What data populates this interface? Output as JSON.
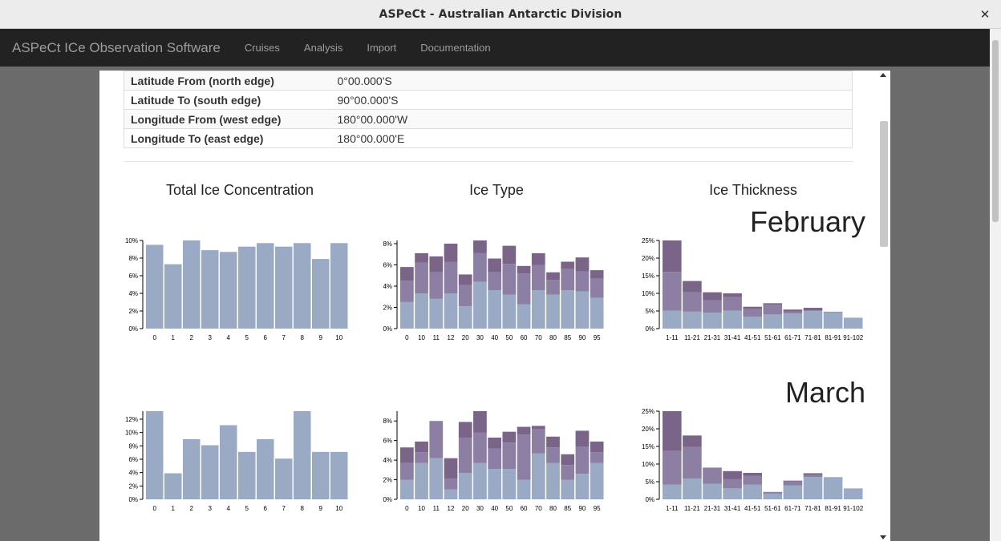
{
  "window": {
    "title": "ASPeCt - Australian Antarctic Division"
  },
  "navbar": {
    "brand": "ASPeCt ICe Observation Software",
    "items": [
      "Cruises",
      "Analysis",
      "Import",
      "Documentation"
    ]
  },
  "info_table": [
    {
      "key": "Latitude From (north edge)",
      "value": "0°00.000'S"
    },
    {
      "key": "Latitude To (south edge)",
      "value": "90°00.000'S"
    },
    {
      "key": "Longitude From (west edge)",
      "value": "180°00.000'W"
    },
    {
      "key": "Longitude To (east edge)",
      "value": "180°00.000'E"
    }
  ],
  "columns": {
    "concentration": "Total Ice Concentration",
    "type": "Ice Type",
    "thickness": "Ice Thickness"
  },
  "months": [
    "February",
    "March"
  ],
  "colors": {
    "light": "#9aaac4",
    "mid": "#8c7fa3",
    "dark": "#7a6488"
  },
  "chart_data": [
    {
      "type": "bar",
      "month": "February",
      "title": "Total Ice Concentration",
      "categories": [
        "0",
        "1",
        "2",
        "3",
        "4",
        "5",
        "6",
        "7",
        "8",
        "9",
        "10"
      ],
      "values": [
        9.5,
        7.3,
        10.1,
        8.9,
        8.7,
        9.3,
        9.7,
        9.3,
        9.7,
        7.9,
        9.7
      ],
      "ylim": [
        0,
        10
      ],
      "yticks": [
        "0%",
        "2%",
        "4%",
        "6%",
        "8%",
        "10%"
      ]
    },
    {
      "type": "bar",
      "month": "February",
      "title": "Ice Type",
      "stacked": true,
      "categories": [
        "0",
        "10",
        "11",
        "12",
        "20",
        "30",
        "40",
        "50",
        "60",
        "70",
        "80",
        "85",
        "90",
        "95"
      ],
      "series": [
        {
          "values": [
            2.5,
            3.3,
            2.8,
            3.3,
            2.1,
            4.4,
            3.6,
            3.2,
            2.3,
            3.6,
            3.2,
            3.6,
            3.5,
            2.9
          ]
        },
        {
          "values": [
            2.0,
            2.9,
            2.5,
            3.0,
            2.0,
            2.7,
            1.7,
            2.9,
            2.9,
            2.4,
            1.4,
            2.0,
            1.9,
            1.8
          ]
        },
        {
          "values": [
            1.3,
            0.9,
            1.5,
            1.7,
            1.0,
            1.4,
            1.3,
            1.7,
            0.7,
            1.1,
            0.7,
            0.7,
            1.3,
            0.8
          ]
        }
      ],
      "ylim": [
        0,
        8.3
      ],
      "yticks": [
        "0%",
        "2%",
        "4%",
        "6%",
        "8%"
      ]
    },
    {
      "type": "bar",
      "month": "February",
      "title": "Ice Thickness",
      "stacked": true,
      "categories": [
        "1-11",
        "11-21",
        "21-31",
        "31-41",
        "41-51",
        "51-61",
        "61-71",
        "71-81",
        "81-91",
        "91-102"
      ],
      "series": [
        {
          "values": [
            5.1,
            4.8,
            4.5,
            5.1,
            3.4,
            4.0,
            4.3,
            5.0,
            4.6,
            3.1
          ]
        },
        {
          "values": [
            11.0,
            5.5,
            3.5,
            3.8,
            2.2,
            2.8,
            0.5,
            0.2,
            0.2,
            0.0
          ]
        },
        {
          "values": [
            9.2,
            3.2,
            2.3,
            1.1,
            0.6,
            0.4,
            0.6,
            0.7,
            0.0,
            0.0
          ]
        }
      ],
      "ylim": [
        0,
        25
      ],
      "yticks": [
        "0%",
        "5%",
        "10%",
        "15%",
        "20%",
        "25%"
      ]
    },
    {
      "type": "bar",
      "month": "March",
      "title": "Total Ice Concentration",
      "categories": [
        "0",
        "1",
        "2",
        "3",
        "4",
        "5",
        "6",
        "7",
        "8",
        "9",
        "10"
      ],
      "values": [
        13.2,
        3.9,
        9.0,
        8.1,
        11.1,
        7.1,
        9.0,
        6.1,
        13.2,
        7.1,
        7.1
      ],
      "ylim": [
        0,
        13.2
      ],
      "yticks": [
        "0%",
        "2%",
        "4%",
        "6%",
        "8%",
        "10%",
        "12%"
      ]
    },
    {
      "type": "bar",
      "month": "March",
      "title": "Ice Type",
      "stacked": true,
      "categories": [
        "0",
        "10",
        "11",
        "12",
        "20",
        "30",
        "40",
        "50",
        "60",
        "70",
        "80",
        "85",
        "90",
        "95"
      ],
      "series": [
        {
          "values": [
            2.0,
            3.7,
            4.2,
            1.0,
            2.7,
            3.7,
            3.1,
            3.1,
            2.0,
            4.7,
            3.7,
            2.0,
            2.6,
            3.7
          ]
        },
        {
          "values": [
            1.7,
            1.1,
            3.8,
            1.1,
            3.6,
            3.1,
            2.1,
            2.7,
            4.6,
            2.5,
            1.6,
            1.5,
            2.8,
            1.1
          ]
        },
        {
          "values": [
            1.6,
            1.1,
            0.0,
            2.1,
            1.6,
            2.2,
            1.1,
            1.1,
            0.8,
            0.3,
            1.1,
            1.1,
            1.6,
            1.1
          ]
        }
      ],
      "ylim": [
        0,
        9.0
      ],
      "yticks": [
        "0%",
        "2%",
        "4%",
        "6%",
        "8%"
      ]
    },
    {
      "type": "bar",
      "month": "March",
      "title": "Ice Thickness",
      "stacked": true,
      "categories": [
        "1-11",
        "11-21",
        "21-31",
        "31-41",
        "41-51",
        "51-61",
        "61-71",
        "71-81",
        "81-91",
        "91-102"
      ],
      "series": [
        {
          "values": [
            4.2,
            5.9,
            4.4,
            3.1,
            4.2,
            1.6,
            3.9,
            6.3,
            6.3,
            3.1
          ]
        },
        {
          "values": [
            9.5,
            9.0,
            4.6,
            2.6,
            2.5,
            0.5,
            1.2,
            0.6,
            0.0,
            0.0
          ]
        },
        {
          "values": [
            11.3,
            3.2,
            0.0,
            2.3,
            0.8,
            0.0,
            0.2,
            0.5,
            0.0,
            0.0
          ]
        }
      ],
      "ylim": [
        0,
        25
      ],
      "yticks": [
        "0%",
        "5%",
        "10%",
        "15%",
        "20%",
        "25%"
      ]
    }
  ]
}
